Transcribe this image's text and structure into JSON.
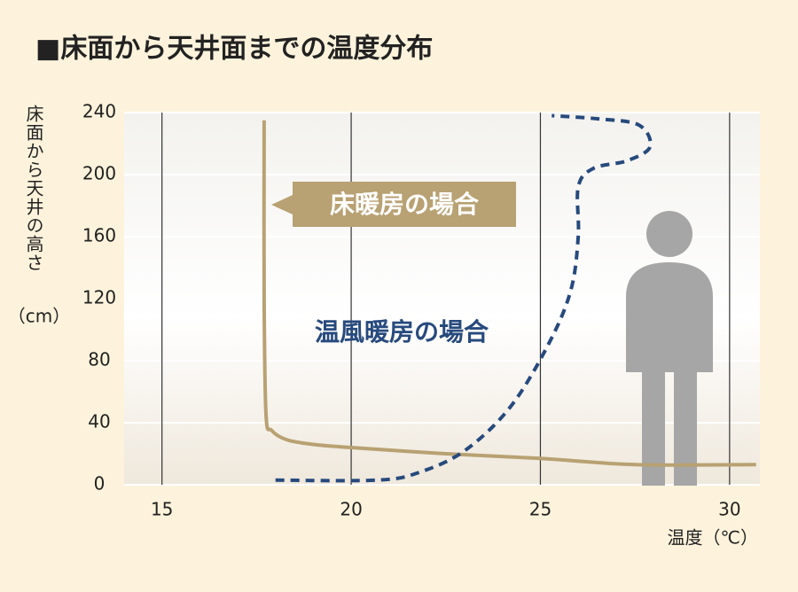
{
  "chart_data": {
    "type": "line",
    "title": "■床面から天井面までの温度分布",
    "y_label": "床面から天井の高さ",
    "y_unit": "（cm）",
    "x_label": "温度（℃）",
    "xlim": [
      14,
      30.8
    ],
    "ylim": [
      0,
      240
    ],
    "xticks": [
      15,
      20,
      25,
      30
    ],
    "yticks": [
      0,
      40,
      80,
      120,
      160,
      200,
      240
    ],
    "grid": true,
    "series": [
      {
        "name": "床暖房の場合",
        "color": "#b8a172",
        "dashed": false,
        "x": [
          17.7,
          17.7,
          17.75,
          17.9,
          18.3,
          19,
          20,
          22.5,
          25,
          27.5,
          30.7
        ],
        "values": [
          235,
          120,
          45,
          35,
          29,
          26,
          24,
          20,
          17,
          13,
          13
        ]
      },
      {
        "name": "温風暖房の場合",
        "color": "#274a7d",
        "dashed": true,
        "x": [
          18,
          20.7,
          21.8,
          23,
          24.2,
          25.2,
          25.8,
          26,
          26,
          26.4,
          27.3,
          27.9,
          27.6,
          26.5,
          25.3
        ],
        "values": [
          3,
          3,
          8,
          22,
          50,
          90,
          125,
          160,
          192,
          204,
          209,
          218,
          232,
          236,
          238
        ]
      }
    ]
  }
}
